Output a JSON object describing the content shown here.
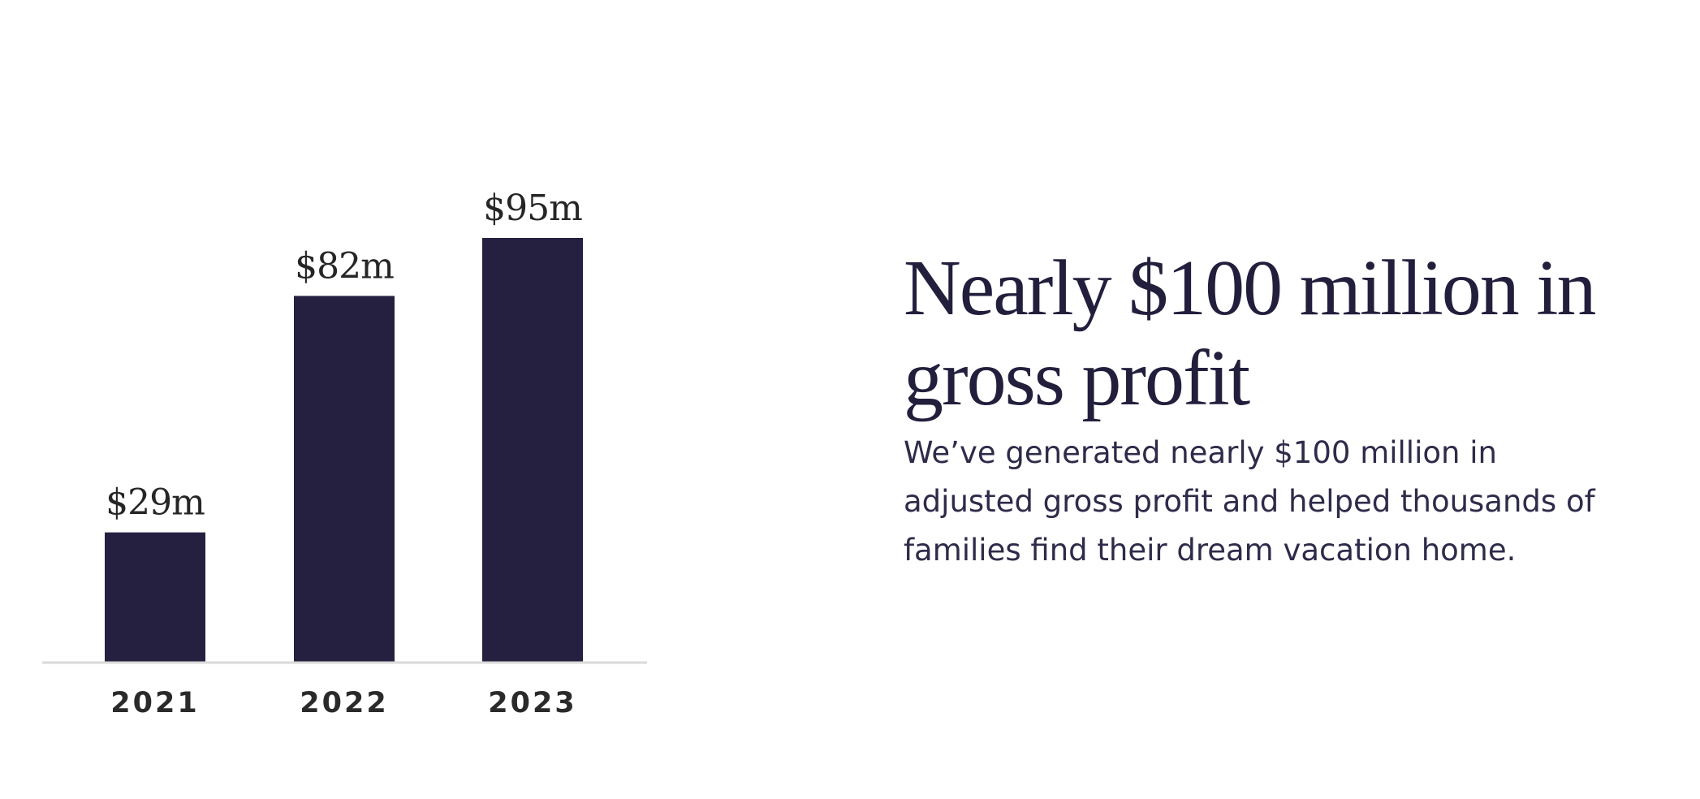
{
  "headline": "Nearly $100 million in gross profit",
  "body": "We’ve generated nearly $100 million in adjusted gross profit and helped thousands of families find their dream vacation home.",
  "colors": {
    "bar": "#262040",
    "baseline": "#d9d9d9",
    "headline": "#221f3d",
    "body": "#2e2b4a"
  },
  "chart_data": {
    "type": "bar",
    "title": "",
    "xlabel": "",
    "ylabel": "",
    "categories": [
      "2021",
      "2022",
      "2023"
    ],
    "values": [
      29,
      82,
      95
    ],
    "value_labels": [
      "$29m",
      "$82m",
      "$95m"
    ],
    "unit": "$m",
    "ylim": [
      0,
      95
    ],
    "grid": false,
    "legend": "none"
  }
}
